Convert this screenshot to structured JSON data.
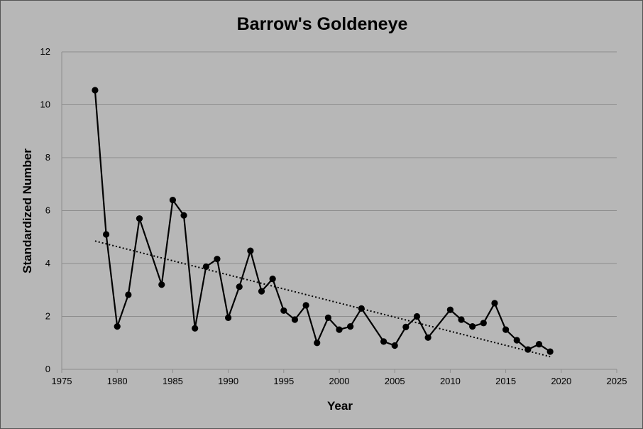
{
  "chart_data": {
    "type": "line",
    "title": "Barrow's Goldeneye",
    "xlabel": "Year",
    "ylabel": "Standardized Number",
    "xlim": [
      1975,
      2025
    ],
    "ylim": [
      0,
      12
    ],
    "xticks": [
      1975,
      1980,
      1985,
      1990,
      1995,
      2000,
      2005,
      2010,
      2015,
      2020,
      2025
    ],
    "yticks": [
      0,
      2,
      4,
      6,
      8,
      10,
      12
    ],
    "grid": "horizontal",
    "legend": "none",
    "series": [
      {
        "x": [
          1978,
          1979,
          1980,
          1981,
          1982,
          1984,
          1985,
          1986,
          1987,
          1988,
          1989,
          1990,
          1991,
          1992,
          1993,
          1994,
          1995,
          1996,
          1997,
          1998,
          1999,
          2000,
          2001,
          2002,
          2004,
          2005,
          2006,
          2007,
          2008,
          2010,
          2011,
          2012,
          2013,
          2014,
          2015,
          2016,
          2017,
          2018,
          2019
        ],
        "values": [
          10.55,
          5.1,
          1.62,
          2.82,
          5.7,
          3.2,
          6.4,
          5.82,
          1.55,
          3.88,
          4.17,
          1.95,
          3.12,
          4.48,
          2.95,
          3.42,
          2.22,
          1.88,
          2.42,
          1.0,
          1.95,
          1.5,
          1.62,
          2.3,
          1.05,
          0.9,
          1.6,
          2.0,
          1.2,
          2.25,
          1.88,
          1.62,
          1.75,
          2.5,
          1.5,
          1.1,
          0.75,
          0.95,
          0.67
        ]
      }
    ],
    "trendline": {
      "type": "linear",
      "x": [
        1978,
        2019
      ],
      "y": [
        4.85,
        0.48
      ]
    },
    "colors": {
      "background": "#b7b7b7",
      "gridline": "#8e8e8e",
      "series": "#000000"
    }
  }
}
